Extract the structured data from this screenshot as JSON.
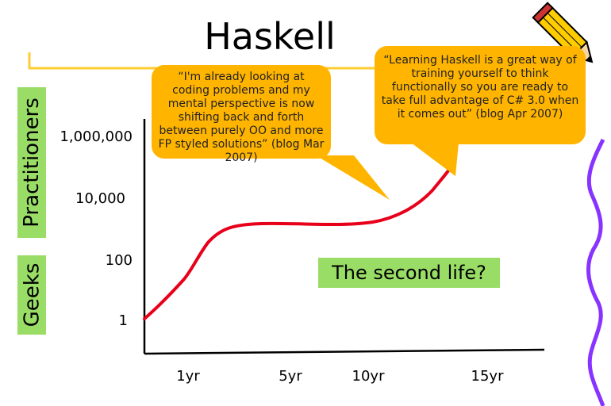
{
  "slide": {
    "title": "Haskell",
    "side_labels": {
      "practitioners": "Practitioners",
      "geeks": "Geeks"
    },
    "annotation": "The second life?",
    "callouts": [
      {
        "text": "“I'm already looking at coding problems and my mental perspective is now shifting back and forth between purely OO and more FP styled solutions” (blog Mar 2007)"
      },
      {
        "text": "“Learning Haskell is a great way of training yourself to think functionally so you are ready to take full advantage of C# 3.0 when it comes out” (blog Apr 2007)"
      }
    ],
    "y_axis_labels": [
      "1,000,000",
      "10,000",
      "100",
      "1"
    ],
    "x_axis_labels": [
      "1yr",
      "5yr",
      "10yr",
      "15yr"
    ],
    "colors": {
      "curve": "#e8001a",
      "callout": "#ffb400",
      "green_label": "#99dd66",
      "rule": "#ffcc33",
      "squiggle": "#8833ff"
    },
    "icons": [
      "pencil-icon"
    ]
  }
}
